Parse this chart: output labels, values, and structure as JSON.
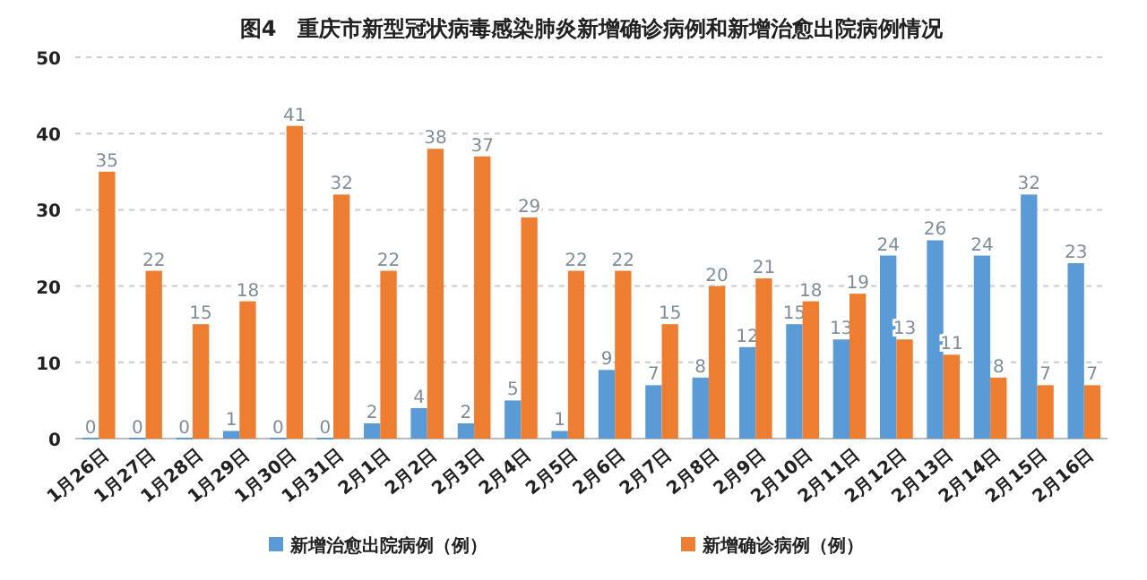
{
  "chart_data": {
    "type": "bar",
    "title": "图4　重庆市新型冠状病毒感染肺炎新增确诊病例和新增治愈出院病例情况",
    "categories": [
      "1月26日",
      "1月27日",
      "1月28日",
      "1月29日",
      "1月30日",
      "1月31日",
      "2月1日",
      "2月2日",
      "2月3日",
      "2月4日",
      "2月5日",
      "2月6日",
      "2月7日",
      "2月8日",
      "2月9日",
      "2月10日",
      "2月11日",
      "2月12日",
      "2月13日",
      "2月14日",
      "2月15日",
      "2月16日"
    ],
    "series": [
      {
        "name": "新增治愈出院病例（例）",
        "color": "#5b9bd5",
        "values": [
          0,
          0,
          0,
          1,
          0,
          0,
          2,
          4,
          2,
          5,
          1,
          9,
          7,
          8,
          12,
          15,
          13,
          24,
          26,
          24,
          32,
          23
        ]
      },
      {
        "name": "新增确诊病例（例）",
        "color": "#ed7d31",
        "values": [
          35,
          22,
          15,
          18,
          41,
          32,
          22,
          38,
          37,
          29,
          22,
          22,
          15,
          20,
          21,
          18,
          19,
          13,
          11,
          8,
          7,
          7
        ]
      }
    ],
    "ylim": [
      0,
      50
    ],
    "yticks": [
      0,
      10,
      20,
      30,
      40,
      50
    ],
    "grid": "y",
    "legend": "bottom",
    "data_labels": true
  }
}
